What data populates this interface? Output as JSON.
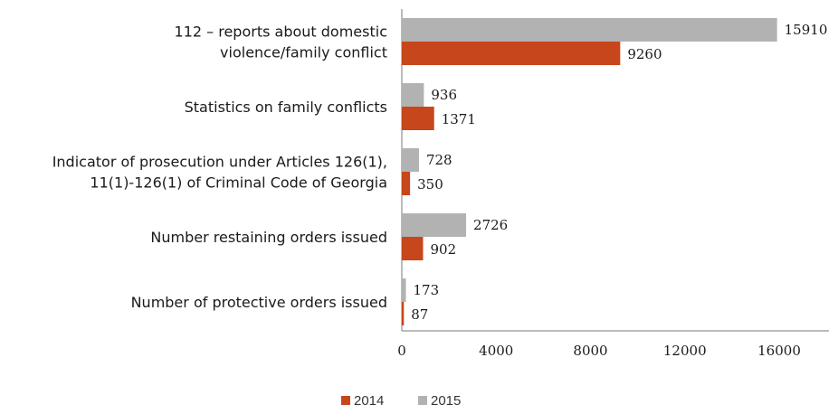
{
  "chart_data": {
    "type": "bar",
    "orientation": "horizontal",
    "categories": [
      [
        "112 – reports about domestic",
        "violence/family conflict"
      ],
      [
        "Statistics on family conflicts"
      ],
      [
        "Indicator  of prosecution under Articles 126(1),",
        "11(1)-126(1) of Criminal Code of Georgia"
      ],
      [
        "Number restaining orders issued"
      ],
      [
        "Number of protective orders issued"
      ]
    ],
    "series": [
      {
        "name": "2015",
        "color": "#b2b2b2",
        "values": [
          15910,
          936,
          728,
          2726,
          173
        ]
      },
      {
        "name": "2014",
        "color": "#c8461b",
        "values": [
          9260,
          1371,
          350,
          902,
          87
        ]
      }
    ],
    "xlim": [
      0,
      17000
    ],
    "xticks": [
      0,
      4000,
      8000,
      12000,
      16000
    ],
    "grid": false,
    "legend": {
      "position": "bottom",
      "items": [
        {
          "label": "2014",
          "color": "#c8461b"
        },
        {
          "label": "2015",
          "color": "#b2b2b2"
        }
      ]
    }
  }
}
